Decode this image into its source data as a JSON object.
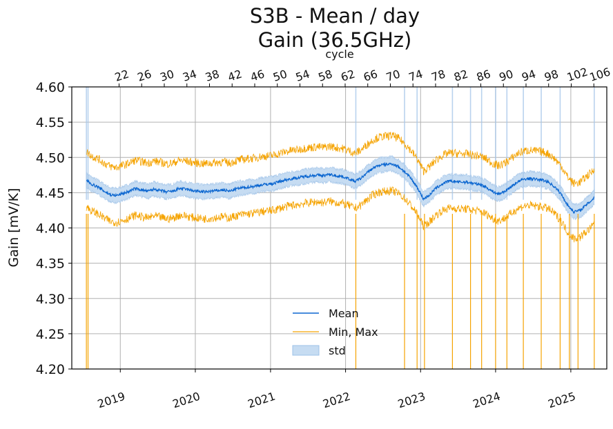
{
  "title": {
    "line1": "S3B - Mean / day",
    "line2": "Gain (36.5GHz)"
  },
  "colors": {
    "mean": "#0b66d0",
    "minmax": "#f5a300",
    "std": "#a8c8ea",
    "grid": "#b0b0b0"
  },
  "legend": {
    "placement": "lower center",
    "mean": "Mean",
    "minmax": "Min, Max",
    "std": "std"
  },
  "chart_data": {
    "type": "line",
    "title": "S3B - Mean / day\nGain (36.5GHz)",
    "xlabel": "",
    "ylabel": "Gain [mV/K]",
    "top_xlabel": "cycle",
    "xlim": [
      "2018-05-10",
      "2025-06-25"
    ],
    "ylim": [
      4.2,
      4.6
    ],
    "y_ticks": [
      "4.20",
      "4.25",
      "4.30",
      "4.35",
      "4.40",
      "4.45",
      "4.50",
      "4.55",
      "4.60"
    ],
    "x_ticks": [
      {
        "label": "2019",
        "date": "2019-01-01"
      },
      {
        "label": "2020",
        "date": "2020-01-01"
      },
      {
        "label": "2021",
        "date": "2021-01-01"
      },
      {
        "label": "2022",
        "date": "2022-01-01"
      },
      {
        "label": "2023",
        "date": "2023-01-01"
      },
      {
        "label": "2024",
        "date": "2024-01-01"
      },
      {
        "label": "2025",
        "date": "2025-01-01"
      }
    ],
    "cycle_ticks": [
      {
        "label": "22",
        "date": "2018-12-26"
      },
      {
        "label": "26",
        "date": "2019-04-15"
      },
      {
        "label": "30",
        "date": "2019-08-03"
      },
      {
        "label": "34",
        "date": "2019-11-21"
      },
      {
        "label": "38",
        "date": "2020-03-10"
      },
      {
        "label": "42",
        "date": "2020-06-28"
      },
      {
        "label": "46",
        "date": "2020-10-16"
      },
      {
        "label": "50",
        "date": "2021-02-03"
      },
      {
        "label": "54",
        "date": "2021-05-24"
      },
      {
        "label": "58",
        "date": "2021-09-11"
      },
      {
        "label": "62",
        "date": "2021-12-30"
      },
      {
        "label": "66",
        "date": "2022-04-19"
      },
      {
        "label": "70",
        "date": "2022-08-07"
      },
      {
        "label": "74",
        "date": "2022-11-25"
      },
      {
        "label": "78",
        "date": "2023-03-15"
      },
      {
        "label": "82",
        "date": "2023-07-03"
      },
      {
        "label": "86",
        "date": "2023-10-21"
      },
      {
        "label": "90",
        "date": "2024-02-08"
      },
      {
        "label": "94",
        "date": "2024-05-28"
      },
      {
        "label": "98",
        "date": "2024-09-15"
      },
      {
        "label": "102",
        "date": "2025-01-03"
      },
      {
        "label": "106",
        "date": "2025-04-23"
      }
    ],
    "grid": true,
    "series": [
      {
        "name": "Mean",
        "kind": "line",
        "points": [
          [
            "2018-07-20",
            4.468
          ],
          [
            "2018-08-15",
            4.462
          ],
          [
            "2018-09-15",
            4.458
          ],
          [
            "2018-10-15",
            4.452
          ],
          [
            "2018-11-15",
            4.447
          ],
          [
            "2018-12-15",
            4.446
          ],
          [
            "2019-01-15",
            4.449
          ],
          [
            "2019-02-15",
            4.452
          ],
          [
            "2019-03-15",
            4.456
          ],
          [
            "2019-04-15",
            4.454
          ],
          [
            "2019-05-15",
            4.452
          ],
          [
            "2019-06-15",
            4.455
          ],
          [
            "2019-07-15",
            4.453
          ],
          [
            "2019-08-15",
            4.451
          ],
          [
            "2019-09-15",
            4.452
          ],
          [
            "2019-10-15",
            4.456
          ],
          [
            "2019-11-15",
            4.455
          ],
          [
            "2019-12-15",
            4.453
          ],
          [
            "2020-01-15",
            4.452
          ],
          [
            "2020-02-15",
            4.451
          ],
          [
            "2020-03-15",
            4.452
          ],
          [
            "2020-04-15",
            4.453
          ],
          [
            "2020-05-15",
            4.454
          ],
          [
            "2020-06-15",
            4.452
          ],
          [
            "2020-07-15",
            4.455
          ],
          [
            "2020-08-15",
            4.457
          ],
          [
            "2020-09-15",
            4.458
          ],
          [
            "2020-10-15",
            4.459
          ],
          [
            "2020-11-15",
            4.461
          ],
          [
            "2020-12-15",
            4.462
          ],
          [
            "2021-01-15",
            4.463
          ],
          [
            "2021-02-15",
            4.466
          ],
          [
            "2021-03-15",
            4.468
          ],
          [
            "2021-04-15",
            4.47
          ],
          [
            "2021-05-15",
            4.471
          ],
          [
            "2021-06-15",
            4.473
          ],
          [
            "2021-07-15",
            4.474
          ],
          [
            "2021-08-15",
            4.475
          ],
          [
            "2021-09-15",
            4.474
          ],
          [
            "2021-10-15",
            4.476
          ],
          [
            "2021-11-15",
            4.474
          ],
          [
            "2021-12-15",
            4.473
          ],
          [
            "2022-01-15",
            4.47
          ],
          [
            "2022-02-15",
            4.466
          ],
          [
            "2022-03-15",
            4.47
          ],
          [
            "2022-04-15",
            4.478
          ],
          [
            "2022-05-15",
            4.485
          ],
          [
            "2022-06-15",
            4.489
          ],
          [
            "2022-07-15",
            4.49
          ],
          [
            "2022-08-15",
            4.491
          ],
          [
            "2022-09-15",
            4.487
          ],
          [
            "2022-10-15",
            4.48
          ],
          [
            "2022-11-15",
            4.47
          ],
          [
            "2022-12-15",
            4.458
          ],
          [
            "2023-01-15",
            4.441
          ],
          [
            "2023-02-15",
            4.447
          ],
          [
            "2023-03-15",
            4.456
          ],
          [
            "2023-04-15",
            4.462
          ],
          [
            "2023-05-15",
            4.466
          ],
          [
            "2023-06-15",
            4.466
          ],
          [
            "2023-07-15",
            4.465
          ],
          [
            "2023-08-15",
            4.465
          ],
          [
            "2023-09-15",
            4.463
          ],
          [
            "2023-10-15",
            4.462
          ],
          [
            "2023-11-15",
            4.458
          ],
          [
            "2023-12-15",
            4.452
          ],
          [
            "2024-01-15",
            4.448
          ],
          [
            "2024-02-15",
            4.452
          ],
          [
            "2024-03-15",
            4.458
          ],
          [
            "2024-04-15",
            4.465
          ],
          [
            "2024-05-15",
            4.469
          ],
          [
            "2024-06-15",
            4.47
          ],
          [
            "2024-07-15",
            4.469
          ],
          [
            "2024-08-15",
            4.468
          ],
          [
            "2024-09-15",
            4.465
          ],
          [
            "2024-10-15",
            4.458
          ],
          [
            "2024-11-15",
            4.448
          ],
          [
            "2024-12-15",
            4.433
          ],
          [
            "2025-01-15",
            4.423
          ],
          [
            "2025-02-15",
            4.425
          ],
          [
            "2025-03-15",
            4.432
          ],
          [
            "2025-04-15",
            4.44
          ],
          [
            "2025-04-25",
            4.444
          ]
        ]
      },
      {
        "name": "Min, Max",
        "kind": "band-edges",
        "max_offset": 0.04,
        "min_offset": -0.038
      },
      {
        "name": "std",
        "kind": "band",
        "half_width": 0.01
      }
    ],
    "spikes": [
      {
        "date": "2018-07-20",
        "to": 4.2,
        "series": "Min, Max"
      },
      {
        "date": "2018-07-28",
        "to": 4.2,
        "series": "Min, Max"
      },
      {
        "date": "2022-02-20",
        "to": 4.2,
        "series": "Min, Max"
      },
      {
        "date": "2022-10-15",
        "to": 4.2,
        "series": "Min, Max"
      },
      {
        "date": "2022-12-15",
        "to": 4.2,
        "series": "Min, Max"
      },
      {
        "date": "2023-01-20",
        "to": 4.2,
        "series": "Min, Max"
      },
      {
        "date": "2023-06-05",
        "to": 4.2,
        "series": "Min, Max"
      },
      {
        "date": "2023-09-01",
        "to": 4.2,
        "series": "Min, Max"
      },
      {
        "date": "2023-10-25",
        "to": 4.2,
        "series": "Min, Max"
      },
      {
        "date": "2024-01-01",
        "to": 4.2,
        "series": "Min, Max"
      },
      {
        "date": "2024-02-25",
        "to": 4.2,
        "series": "Min, Max"
      },
      {
        "date": "2024-05-15",
        "to": 4.2,
        "series": "Min, Max"
      },
      {
        "date": "2024-08-10",
        "to": 4.2,
        "series": "Min, Max"
      },
      {
        "date": "2024-11-10",
        "to": 4.2,
        "series": "Min, Max"
      },
      {
        "date": "2024-12-25",
        "to": 4.2,
        "series": "Min, Max"
      },
      {
        "date": "2025-02-05",
        "to": 4.2,
        "series": "Min, Max"
      },
      {
        "date": "2025-04-25",
        "to": 4.2,
        "series": "Min, Max"
      }
    ],
    "std_spikes": [
      "2018-07-20",
      "2018-07-28",
      "2022-02-20",
      "2022-10-15",
      "2022-12-15",
      "2023-06-05",
      "2023-09-01",
      "2023-10-25",
      "2024-01-01",
      "2024-02-25",
      "2024-05-15",
      "2024-08-10",
      "2024-11-10",
      "2025-04-25"
    ]
  }
}
